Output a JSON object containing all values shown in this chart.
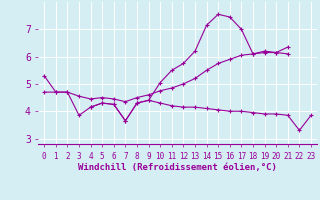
{
  "xlabel": "Windchill (Refroidissement éolien,°C)",
  "x_values": [
    0,
    1,
    2,
    3,
    4,
    5,
    6,
    7,
    8,
    9,
    10,
    11,
    12,
    13,
    14,
    15,
    16,
    17,
    18,
    19,
    20,
    21,
    22,
    23
  ],
  "line1_y": [
    5.3,
    4.7,
    4.7,
    3.85,
    4.15,
    4.3,
    4.25,
    3.65,
    4.3,
    4.4,
    5.05,
    5.5,
    5.75,
    6.2,
    7.15,
    7.55,
    7.45,
    7.0,
    6.1,
    6.2,
    6.15,
    6.35,
    null,
    null
  ],
  "line2_y": [
    4.7,
    4.7,
    4.7,
    4.55,
    4.45,
    4.5,
    4.45,
    4.35,
    4.5,
    4.6,
    4.75,
    4.85,
    5.0,
    5.2,
    5.5,
    5.75,
    5.9,
    6.05,
    6.1,
    6.15,
    6.15,
    6.1,
    null,
    null
  ],
  "line3_y": [
    null,
    null,
    null,
    null,
    4.15,
    4.3,
    4.25,
    3.65,
    4.3,
    4.4,
    4.3,
    4.2,
    4.15,
    4.15,
    4.1,
    4.05,
    4.0,
    4.0,
    3.95,
    3.9,
    3.9,
    3.85,
    3.3,
    3.85
  ],
  "line_color": "#990099",
  "bg_color": "#d5eef4",
  "grid_color": "#ffffff",
  "ylim": [
    2.8,
    8.0
  ],
  "xlim": [
    -0.5,
    23.5
  ],
  "yticks": [
    3,
    4,
    5,
    6,
    7
  ],
  "xtick_fontsize": 5.5,
  "ytick_fontsize": 7,
  "xlabel_fontsize": 6.5
}
